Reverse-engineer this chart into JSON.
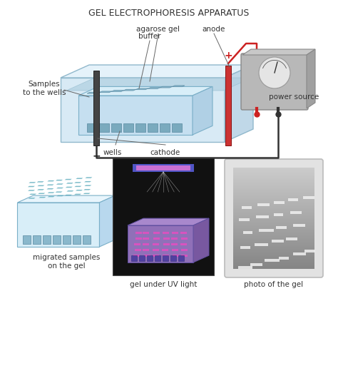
{
  "title": "GEL ELECTROPHORESIS APPARATUS",
  "title_fontsize": 9,
  "title_color": "#333333",
  "bg_color": "#ffffff",
  "labels": {
    "agarose_gel": "agarose gel",
    "buffer": "buffer",
    "anode": "anode",
    "samples_to_wells": "Samples\nto the wells",
    "wells": "wells",
    "cathode": "cathode",
    "power_source": "power source",
    "migrated_samples": "migrated samples\non the gel",
    "gel_uv": "gel under UV light",
    "photo_gel": "photo of the gel"
  },
  "colors": {
    "label_color": "#333333",
    "label_fontsize": 7.5,
    "line_color": "#666666"
  }
}
